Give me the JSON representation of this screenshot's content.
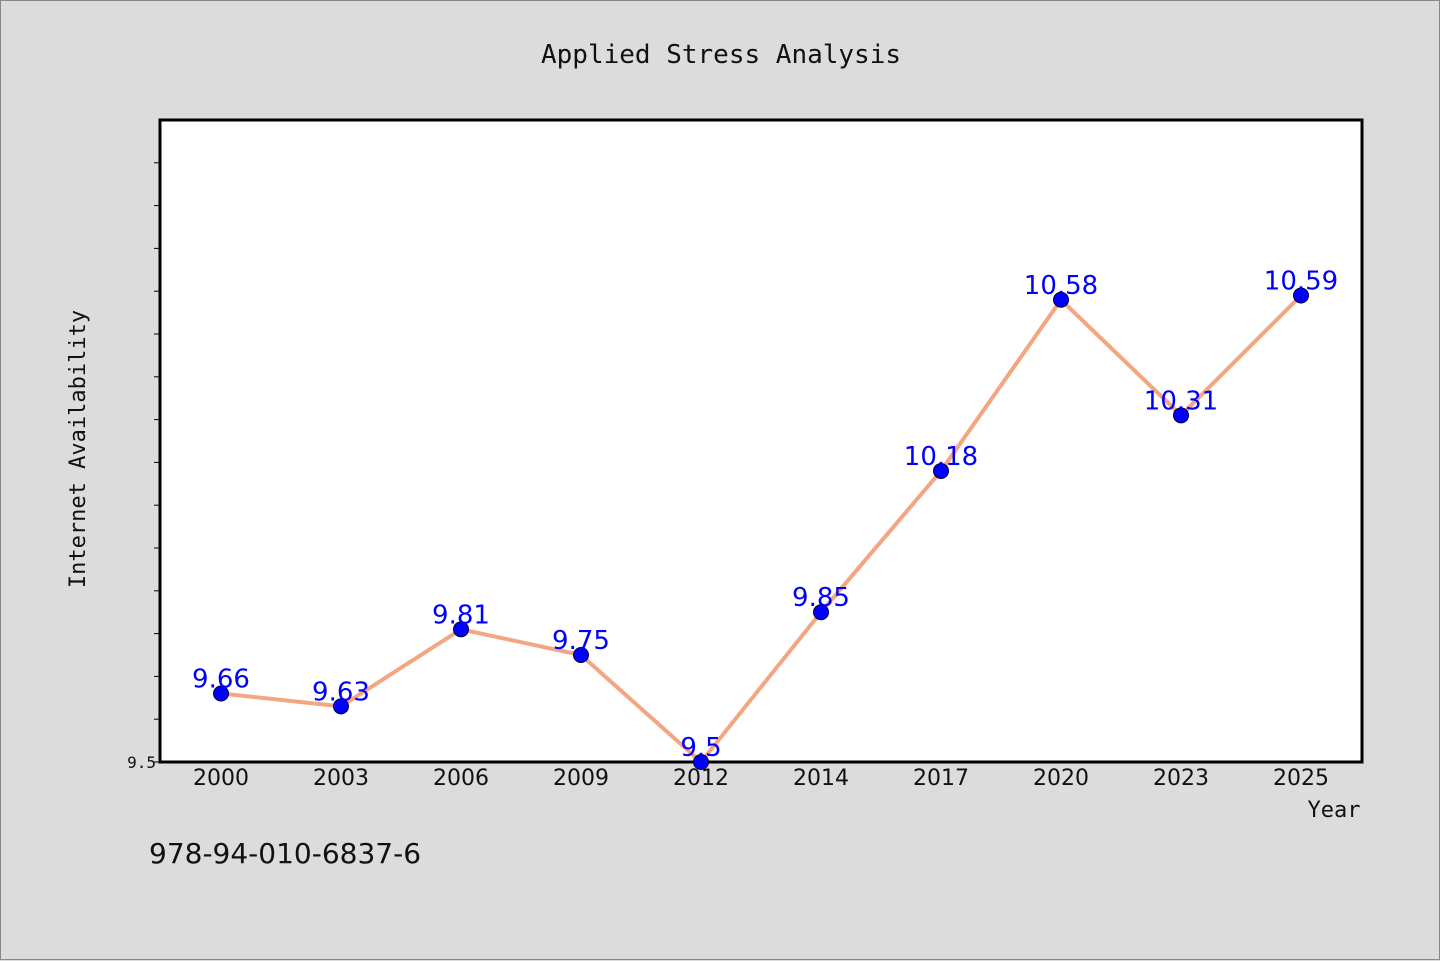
{
  "chart_data": {
    "type": "line",
    "title": "Applied Stress Analysis",
    "xlabel": "Year",
    "ylabel": "Internet Availability",
    "categories": [
      "2000",
      "2003",
      "2006",
      "2009",
      "2012",
      "2014",
      "2017",
      "2020",
      "2023",
      "2025"
    ],
    "series": [
      {
        "values": [
          9.66,
          9.63,
          9.81,
          9.75,
          9.5,
          9.85,
          10.18,
          10.58,
          10.31,
          10.59
        ],
        "line_color": "#f4a582",
        "marker_color": "#0000ff",
        "label_color": "#0000ff"
      }
    ],
    "data_labels": [
      "9.66",
      "9.63",
      "9.81",
      "9.75",
      "9.5",
      "9.85",
      "10.18",
      "10.58",
      "10.31",
      "10.59"
    ],
    "ylim": [
      9.5,
      11.0
    ],
    "yticks_minor_step": 0.1,
    "ytick_labels": [
      "9.5"
    ],
    "grid": false,
    "legend": "none"
  },
  "footer": {
    "isbn": "978-94-010-6837-6"
  },
  "colors": {
    "background": "#dcdcdc",
    "plot_background": "#ffffff",
    "axis": "#000000"
  }
}
